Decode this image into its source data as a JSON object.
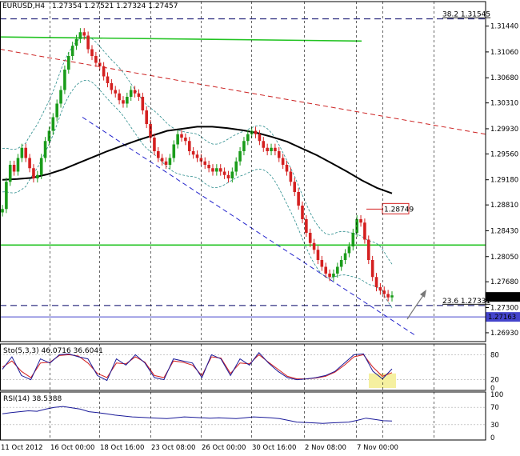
{
  "header": {
    "symbol": "EURUSD,H4",
    "ohlc": "1.27354 1.27521 1.27324 1.27457"
  },
  "chart_data": {
    "type": "candlestick",
    "title": "EURUSD,H4",
    "price_axis": {
      "ticks": [
        "1.31440",
        "1.31060",
        "1.30680",
        "1.30310",
        "1.29930",
        "1.29560",
        "1.29180",
        "1.28810",
        "1.28430",
        "1.28050",
        "1.27680",
        "1.27300",
        "1.26930"
      ],
      "ylim": [
        1.268,
        1.318
      ]
    },
    "time_axis": {
      "ticks": [
        "11 Oct 2012",
        "16 Oct 00:00",
        "18 Oct 16:00",
        "23 Oct 08:00",
        "26 Oct 00:00",
        "30 Oct 16:00",
        "2 Nov 08:00",
        "7 Nov 00:00"
      ]
    },
    "price_labels": {
      "current": "1.27457",
      "blue_line": "1.27163",
      "high_marker": "1.28749",
      "fib_382": "38.2",
      "fib_382_value": "1.31545",
      "fib_236": "23.6",
      "fib_236_value": "1.27331"
    },
    "levels": {
      "current": 1.27457,
      "blue_line": 1.27163,
      "fib_382": 1.31545,
      "fib_236": 1.27331,
      "green_support": 1.2822,
      "green_resistance_start": 1.3128,
      "green_resistance_end": 1.3122
    },
    "close_series": [
      1.2875,
      1.2915,
      1.294,
      1.293,
      1.295,
      1.2965,
      1.295,
      1.2935,
      1.292,
      1.2925,
      1.295,
      1.2975,
      1.299,
      1.301,
      1.303,
      1.305,
      1.308,
      1.31,
      1.3115,
      1.3125,
      1.3135,
      1.313,
      1.311,
      1.31,
      1.309,
      1.3085,
      1.307,
      1.306,
      1.305,
      1.3045,
      1.3035,
      1.303,
      1.304,
      1.305,
      1.3045,
      1.304,
      1.302,
      1.3,
      1.298,
      1.296,
      1.295,
      1.2945,
      1.294,
      1.295,
      1.297,
      1.2985,
      1.298,
      1.2975,
      1.296,
      1.2955,
      1.295,
      1.2945,
      1.294,
      1.2935,
      1.293,
      1.2935,
      1.293,
      1.2925,
      1.292,
      1.293,
      1.2945,
      1.296,
      1.2975,
      1.2985,
      1.299,
      1.2985,
      1.2975,
      1.2965,
      1.296,
      1.2965,
      1.296,
      1.295,
      1.294,
      1.293,
      1.2915,
      1.29,
      1.288,
      1.286,
      1.284,
      1.2825,
      1.2815,
      1.28,
      1.279,
      1.278,
      1.2775,
      1.278,
      1.279,
      1.28,
      1.281,
      1.282,
      1.284,
      1.286,
      1.2855,
      1.283,
      1.28,
      1.2775,
      1.276,
      1.2755,
      1.275,
      1.2745,
      1.2748
    ],
    "ma_series": [
      1.2918,
      1.2919,
      1.2921,
      1.2926,
      1.2933,
      1.2942,
      1.2951,
      1.296,
      1.2968,
      1.2976,
      1.2983,
      1.299,
      1.2993,
      1.2996,
      1.2996,
      1.2994,
      1.2991,
      1.2987,
      1.2981,
      1.2974,
      1.2964,
      1.2954,
      1.2942,
      1.293,
      1.2917,
      1.2906,
      1.2898
    ],
    "stoch": {
      "label": "Sto(5,3,3) 46.0716 36.6041",
      "levels": [
        80,
        20,
        0
      ],
      "main": [
        45,
        75,
        30,
        20,
        70,
        60,
        80,
        82,
        75,
        70,
        30,
        18,
        70,
        55,
        80,
        60,
        25,
        20,
        70,
        65,
        60,
        25,
        80,
        70,
        30,
        70,
        55,
        85,
        60,
        40,
        25,
        20,
        22,
        25,
        30,
        40,
        60,
        80,
        82,
        40,
        22,
        46
      ],
      "signal": [
        50,
        65,
        40,
        25,
        60,
        62,
        78,
        80,
        77,
        60,
        35,
        25,
        60,
        58,
        75,
        62,
        30,
        25,
        65,
        62,
        55,
        30,
        75,
        72,
        35,
        60,
        58,
        80,
        62,
        45,
        28,
        22,
        22,
        24,
        28,
        38,
        55,
        75,
        80,
        50,
        28,
        37
      ]
    },
    "rsi": {
      "label": "RSI(14) 38.5388",
      "levels": [
        100,
        70,
        30,
        0
      ],
      "values": [
        55,
        58,
        60,
        62,
        61,
        66,
        70,
        72,
        69,
        66,
        60,
        58,
        55,
        52,
        50,
        48,
        47,
        46,
        45,
        44,
        46,
        48,
        47,
        46,
        45,
        46,
        45,
        44,
        46,
        48,
        47,
        46,
        44,
        40,
        36,
        35,
        34,
        33,
        34,
        35,
        36,
        40,
        45,
        42,
        39,
        38.5
      ]
    }
  }
}
